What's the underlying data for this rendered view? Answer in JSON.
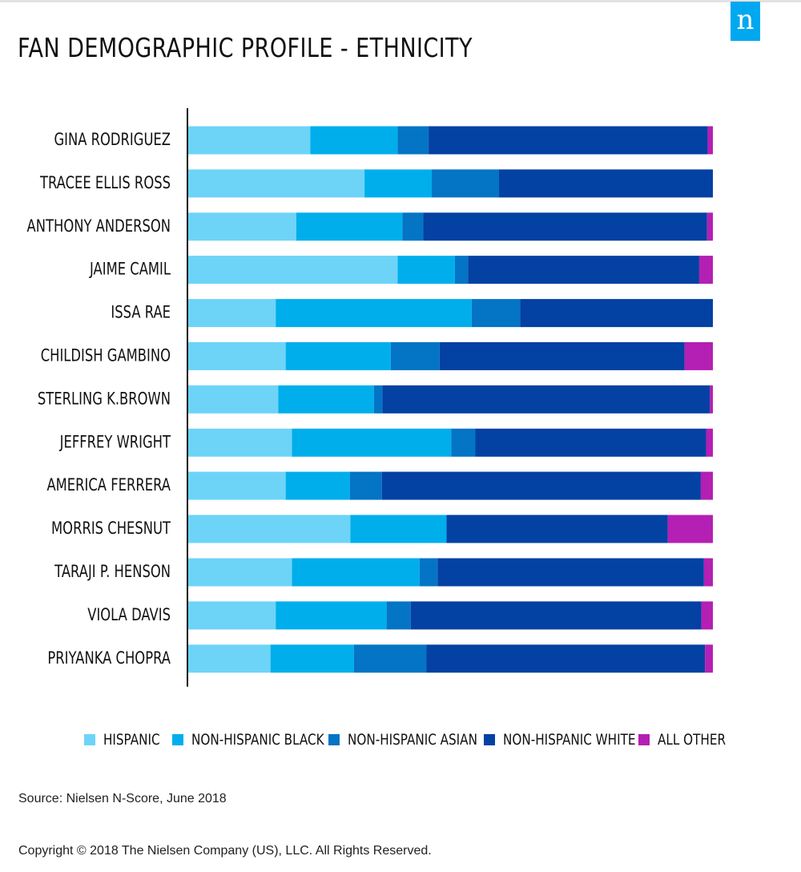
{
  "title": "FAN DEMOGRAPHIC PROFILE - ETHNICITY",
  "logo_text": "n",
  "source": "Source: Nielsen N-Score, June 2018",
  "copyright": "Copyright © 2018 The Nielsen Company (US), LLC. All Rights Reserved.",
  "colors": {
    "hispanic": "#6dd4f7",
    "black": "#00aeec",
    "asian": "#0474c4",
    "white": "#0341a3",
    "other": "#b41fb4",
    "brand": "#00a8f0"
  },
  "chart_data": {
    "type": "bar",
    "orientation": "horizontal",
    "stacked": true,
    "title": "FAN DEMOGRAPHIC PROFILE - ETHNICITY",
    "xlabel": "",
    "ylabel": "",
    "xlim": [
      0,
      100
    ],
    "x_ticks": [
      "0%",
      "10%",
      "20%",
      "30%",
      "40%",
      "50%",
      "60%",
      "70%",
      "80%",
      "90%",
      "100%"
    ],
    "grid": false,
    "legend_position": "bottom",
    "categories": [
      "GINA RODRIGUEZ",
      "TRACEE ELLIS ROSS",
      "ANTHONY ANDERSON",
      "JAIME CAMIL",
      "ISSA RAE",
      "CHILDISH GAMBINO",
      "STERLING K.BROWN",
      "JEFFREY WRIGHT",
      "AMERICA FERRERA",
      "MORRIS CHESNUT",
      "TARAJI P. HENSON",
      "VIOLA DAVIS",
      "PRIYANKA CHOPRA"
    ],
    "series": [
      {
        "name": "HISPANIC",
        "color": "#6dd4f7",
        "values": [
          23.4,
          33.7,
          20.7,
          40.0,
          16.8,
          18.7,
          17.3,
          19.9,
          18.7,
          31.0,
          19.9,
          16.8,
          15.8
        ]
      },
      {
        "name": "NON-HISPANIC BLACK",
        "color": "#00aeec",
        "values": [
          16.6,
          12.8,
          20.2,
          10.9,
          37.3,
          20.0,
          18.2,
          30.3,
          12.2,
          18.3,
          24.3,
          21.1,
          15.9
        ]
      },
      {
        "name": "NON-HISPANIC ASIAN",
        "color": "#0474c4",
        "values": [
          5.9,
          12.8,
          4.0,
          2.5,
          9.2,
          9.3,
          1.6,
          4.6,
          6.1,
          0.0,
          3.4,
          4.6,
          13.8
        ]
      },
      {
        "name": "NON-HISPANIC WHITE",
        "color": "#0341a3",
        "values": [
          53.1,
          40.7,
          54.0,
          44.0,
          36.7,
          46.6,
          62.3,
          43.9,
          60.7,
          42.1,
          50.7,
          55.3,
          53.0
        ]
      },
      {
        "name": "ALL OTHER",
        "color": "#b41fb4",
        "values": [
          1.0,
          0.0,
          1.1,
          2.6,
          0.0,
          5.4,
          0.6,
          1.3,
          2.3,
          8.6,
          1.7,
          2.2,
          1.5
        ]
      }
    ]
  }
}
